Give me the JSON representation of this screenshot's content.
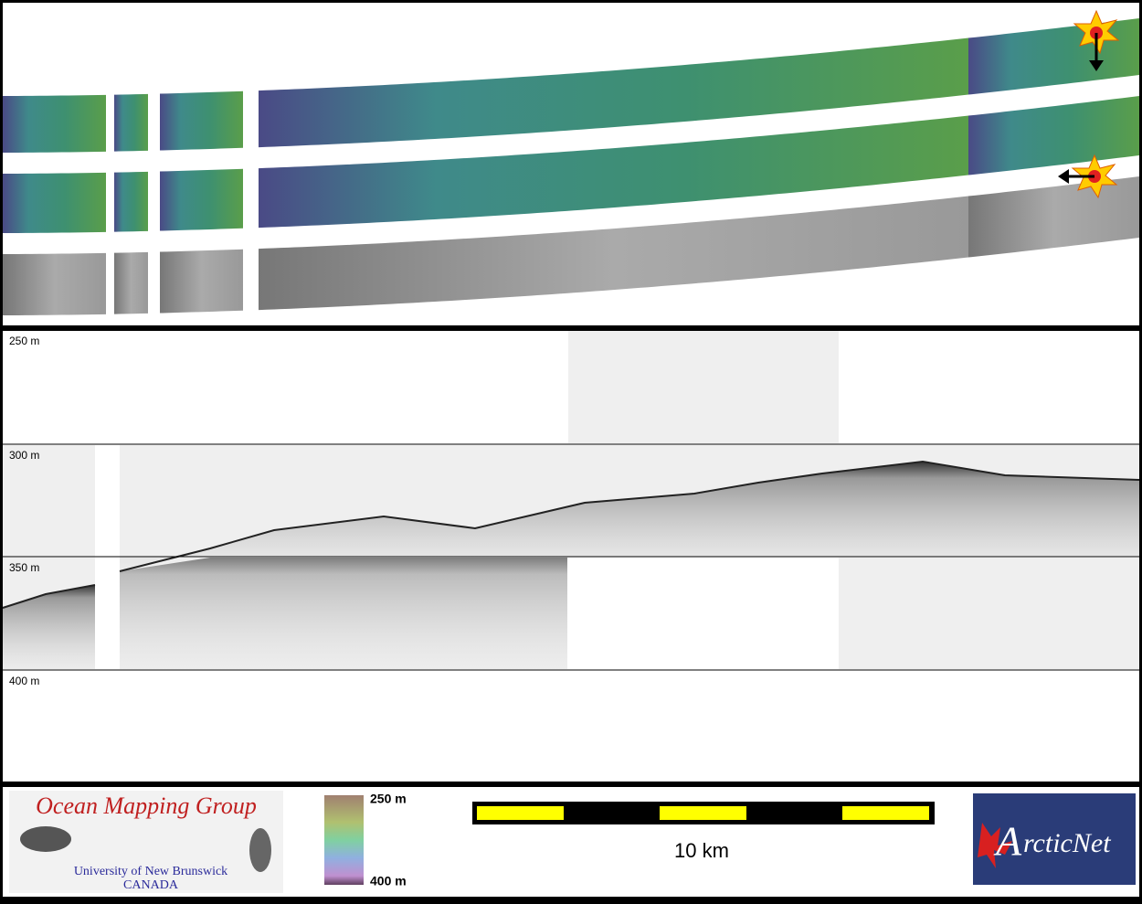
{
  "profile": {
    "depth_labels": [
      "250 m",
      "300 m",
      "350 m",
      "400 m"
    ]
  },
  "legend": {
    "colorbar": {
      "top": "250 m",
      "bottom": "400 m"
    },
    "scale_bar": "10 km"
  },
  "logos": {
    "omg": {
      "title": "Ocean Mapping Group",
      "line1": "University of New Brunswick",
      "line2": "CANADA"
    },
    "arcticnet": {
      "initial": "A",
      "rest": "rcticNet"
    }
  }
}
